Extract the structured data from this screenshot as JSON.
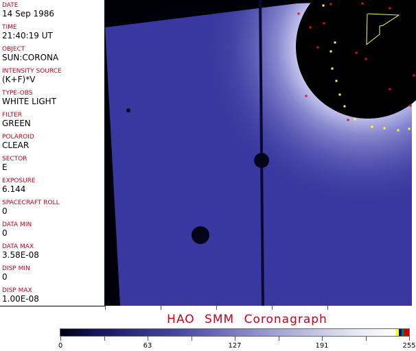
{
  "fields": [
    {
      "label": "DATE",
      "value": "14 Sep 1986"
    },
    {
      "label": "TIME",
      "value": "21:40:19 UT"
    },
    {
      "label": "OBJECT",
      "value": "SUN:CORONA"
    },
    {
      "label": "INTENSITY SOURCE",
      "value": "(K+F)*V"
    },
    {
      "label": "TYPE-OBS",
      "value": "WHITE LIGHT"
    },
    {
      "label": "FILTER",
      "value": "GREEN"
    },
    {
      "label": "POLAROID",
      "value": "CLEAR"
    },
    {
      "label": "SECTOR",
      "value": "E"
    },
    {
      "label": "EXPOSURE",
      "value": "6.144"
    },
    {
      "label": "SPACECRAFT ROLL",
      "value": "0"
    },
    {
      "label": "DATA MIN",
      "value": "0"
    },
    {
      "label": "DATA MAX",
      "value": "3.58E-08"
    },
    {
      "label": "DISP MIN",
      "value": "0"
    },
    {
      "label": "DISP MAX",
      "value": "1.00E-08"
    }
  ],
  "title": "HAO  SMM Coronagraph",
  "colorbar": {
    "ticks": [
      "0",
      "63",
      "127",
      "191",
      "255"
    ],
    "colors": [
      "#000010",
      "#4a4aa8",
      "#ffffff",
      "#ffff00",
      "#0000cc",
      "#008800",
      "#cc0000"
    ]
  },
  "accent": "#c8001e"
}
